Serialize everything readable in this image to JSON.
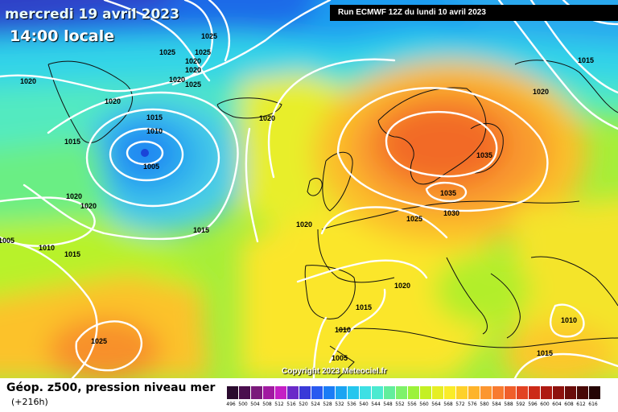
{
  "header": {
    "date": "mercredi 19 avril 2023",
    "local_time": "14:00 locale",
    "run": "Run ECMWF 12Z du lundi 10 avril 2023"
  },
  "copyright": "Copyright 2023 Meteociel.fr",
  "footer": {
    "title": "Géop. z500, pression niveau mer",
    "lead": "(+216h)"
  },
  "legend": {
    "values": [
      "496",
      "500",
      "504",
      "508",
      "512",
      "516",
      "520",
      "524",
      "528",
      "532",
      "536",
      "540",
      "544",
      "548",
      "552",
      "556",
      "560",
      "564",
      "568",
      "572",
      "576",
      "580",
      "584",
      "588",
      "592",
      "596",
      "600",
      "604",
      "608",
      "612",
      "616"
    ],
    "colors": [
      "#2a0a2e",
      "#4a0e4e",
      "#7a1a7a",
      "#a11aa1",
      "#c51fc5",
      "#6a2ac8",
      "#3a3ad8",
      "#2a5af0",
      "#1a7cf6",
      "#1aa4f2",
      "#24c6ee",
      "#3ee0e4",
      "#4cead0",
      "#62ee9c",
      "#7ef26a",
      "#9cf23a",
      "#c4f024",
      "#e6ee24",
      "#faec28",
      "#fed12a",
      "#feb42a",
      "#fc9630",
      "#f87a30",
      "#f05e2a",
      "#e24222",
      "#cc2a18",
      "#ae1a12",
      "#8e120e",
      "#6a0c0a",
      "#480806",
      "#240404"
    ]
  },
  "map": {
    "low_center_marker_color": "#1a44d8",
    "pressure_labels": [
      {
        "text": "1025"
      },
      {
        "text": "1025"
      },
      {
        "text": "1025"
      },
      {
        "text": "1020"
      },
      {
        "text": "1020"
      },
      {
        "text": "1020"
      },
      {
        "text": "1020"
      },
      {
        "text": "1025"
      },
      {
        "text": "1020"
      },
      {
        "text": "1015"
      },
      {
        "text": "1010"
      },
      {
        "text": "1005"
      },
      {
        "text": "1015"
      },
      {
        "text": "1020"
      },
      {
        "text": "1020"
      },
      {
        "text": "1005"
      },
      {
        "text": "1010"
      },
      {
        "text": "1015"
      },
      {
        "text": "1015"
      },
      {
        "text": "1020"
      },
      {
        "text": "1020"
      },
      {
        "text": "1025"
      },
      {
        "text": "1035"
      },
      {
        "text": "1035"
      },
      {
        "text": "1030"
      },
      {
        "text": "1015"
      },
      {
        "text": "1020"
      },
      {
        "text": "1020"
      },
      {
        "text": "1015"
      },
      {
        "text": "1010"
      },
      {
        "text": "1005"
      },
      {
        "text": "1010"
      },
      {
        "text": "1015"
      },
      {
        "text": "1025"
      }
    ]
  }
}
